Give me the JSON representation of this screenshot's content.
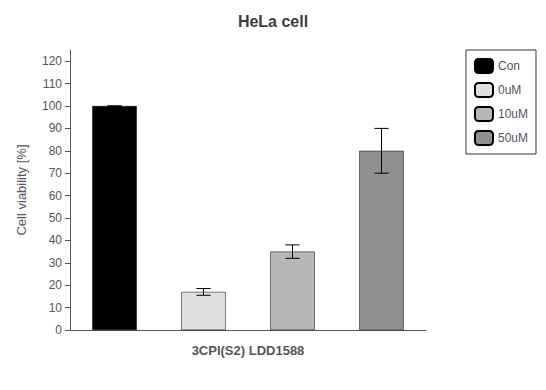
{
  "chart_data": {
    "type": "bar",
    "title": "HeLa cell",
    "xlabel": "3CPI(S2) LDD1588",
    "ylabel": "Cell viability [%]",
    "categories": [
      "Con",
      "0uM",
      "10uM",
      "50uM"
    ],
    "values": [
      100,
      17,
      35,
      80
    ],
    "errors": [
      0,
      1.5,
      3.0,
      10
    ],
    "colors": [
      "#000000",
      "#e0e0e0",
      "#b8b8b8",
      "#909090"
    ],
    "ylim": [
      0,
      125
    ],
    "yticks": [
      0,
      10,
      20,
      30,
      40,
      50,
      60,
      70,
      80,
      90,
      100,
      110,
      120
    ],
    "grid": false,
    "legend": "right",
    "tick_labels": "y"
  }
}
